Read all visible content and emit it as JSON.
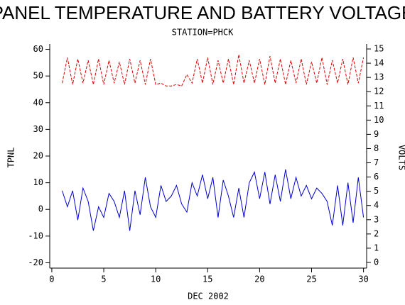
{
  "chart_data": {
    "type": "line",
    "title": "PANEL TEMPERATURE AND BATTERY VOLTAGE",
    "subtitle": "STATION=PHCK",
    "x_label": "DEC 2002",
    "y_label": "TPNL",
    "y2_label": "VOLTS",
    "x": [
      1,
      1.5,
      2,
      2.5,
      3,
      3.5,
      4,
      4.5,
      5,
      5.5,
      6,
      6.5,
      7,
      7.5,
      8,
      8.5,
      9,
      9.5,
      10,
      10.5,
      11,
      11.5,
      12,
      12.5,
      13,
      13.5,
      14,
      14.5,
      15,
      15.5,
      16,
      16.5,
      17,
      17.5,
      18,
      18.5,
      19,
      19.5,
      20,
      20.5,
      21,
      21.5,
      22,
      22.5,
      23,
      23.5,
      24,
      24.5,
      25,
      25.5,
      26,
      26.5,
      27,
      27.5,
      28,
      28.5,
      29,
      29.5,
      30
    ],
    "series": [
      {
        "name": "TPNL",
        "color": "#0000cc",
        "dash": false,
        "values": [
          7,
          1,
          7,
          -4,
          8,
          3,
          -8,
          1,
          -3,
          6,
          3,
          -3,
          7,
          -8,
          7,
          -2,
          12,
          1,
          -3,
          9,
          3,
          5,
          9,
          2,
          -1,
          10,
          5,
          13,
          4,
          12,
          -3,
          11,
          5,
          -3,
          8,
          -3,
          10,
          14,
          4,
          14,
          2,
          13,
          3,
          15,
          4,
          12,
          5,
          9,
          4,
          8,
          6,
          3,
          -6,
          9,
          -6,
          10,
          -5,
          12,
          -3
        ]
      },
      {
        "name": "VOLTS",
        "color": "#dd0000",
        "dash": true,
        "axis": "y2",
        "values": [
          12.6,
          14.4,
          12.5,
          14.3,
          12.6,
          14.2,
          12.5,
          14.3,
          12.5,
          14.2,
          12.6,
          14.1,
          12.5,
          14.3,
          12.6,
          14.2,
          12.5,
          14.3,
          12.5,
          12.6,
          12.4,
          12.4,
          12.5,
          12.4,
          13.2,
          12.6,
          14.3,
          12.6,
          14.4,
          12.5,
          14.2,
          12.6,
          14.3,
          12.5,
          14.6,
          12.6,
          14.2,
          12.6,
          14.3,
          12.5,
          14.5,
          12.6,
          14.3,
          12.5,
          14.2,
          12.6,
          14.3,
          12.5,
          14.1,
          12.6,
          14.4,
          12.5,
          14.2,
          12.6,
          14.3,
          12.5,
          14.4,
          12.6,
          14.4
        ]
      }
    ],
    "xlim": [
      -0.2,
      30.3
    ],
    "xticks": [
      0,
      5,
      10,
      15,
      20,
      25,
      30
    ],
    "ylim": [
      -22,
      62
    ],
    "yticks": [
      -20,
      -10,
      0,
      10,
      20,
      30,
      40,
      50,
      60
    ],
    "y2lim": [
      -0.4,
      15.35
    ],
    "y2ticks": [
      0,
      1,
      2,
      3,
      4,
      5,
      6,
      7,
      8,
      9,
      10,
      11,
      12,
      13,
      14,
      15
    ],
    "grid": false
  }
}
